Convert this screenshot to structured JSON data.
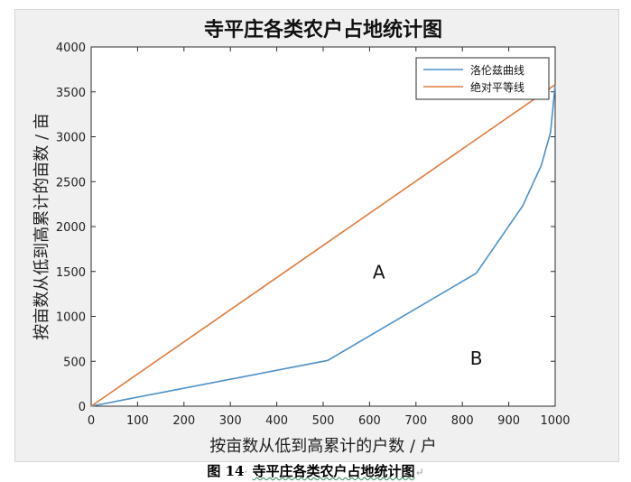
{
  "chart_data": {
    "type": "line",
    "title": "寺平庄各类农户占地统计图",
    "xlabel": "按亩数从低到高累计的户数 / 户",
    "ylabel": "按亩数从低到高累计的亩数 / 亩",
    "xlim": [
      0,
      1000
    ],
    "ylim": [
      0,
      4000
    ],
    "xticks": [
      0,
      100,
      200,
      300,
      400,
      500,
      600,
      700,
      800,
      900,
      1000
    ],
    "yticks": [
      0,
      500,
      1000,
      1500,
      2000,
      2500,
      3000,
      3500,
      4000
    ],
    "grid": false,
    "legend_position": "top-right",
    "series": [
      {
        "name": "洛伦兹曲线",
        "color": "#4a90c8",
        "x": [
          0,
          510,
          830,
          930,
          970,
          990,
          1000
        ],
        "y": [
          0,
          510,
          1480,
          2230,
          2680,
          3050,
          3580
        ]
      },
      {
        "name": "绝对平等线",
        "color": "#e07b3c",
        "x": [
          0,
          1000
        ],
        "y": [
          0,
          3580
        ]
      }
    ],
    "annotations": [
      {
        "text": "A",
        "x": 620,
        "y": 1420
      },
      {
        "text": "B",
        "x": 830,
        "y": 460
      }
    ]
  },
  "caption": {
    "prefix": "图 14",
    "mark": "·",
    "text": "寺平庄各类农户占地统计图",
    "end_mark": "↵"
  }
}
